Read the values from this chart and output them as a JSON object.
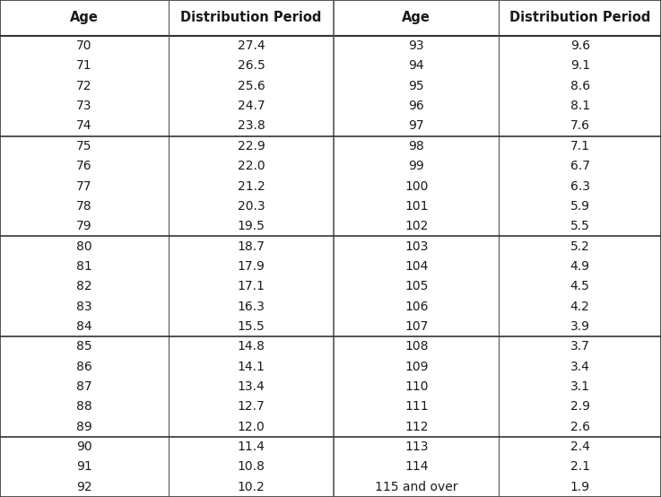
{
  "headers": [
    "Age",
    "Distribution Period",
    "Age",
    "Distribution Period"
  ],
  "groups": [
    {
      "left": [
        [
          "70",
          "27.4"
        ],
        [
          "71",
          "26.5"
        ],
        [
          "72",
          "25.6"
        ],
        [
          "73",
          "24.7"
        ],
        [
          "74",
          "23.8"
        ]
      ],
      "right": [
        [
          "93",
          "9.6"
        ],
        [
          "94",
          "9.1"
        ],
        [
          "95",
          "8.6"
        ],
        [
          "96",
          "8.1"
        ],
        [
          "97",
          "7.6"
        ]
      ]
    },
    {
      "left": [
        [
          "75",
          "22.9"
        ],
        [
          "76",
          "22.0"
        ],
        [
          "77",
          "21.2"
        ],
        [
          "78",
          "20.3"
        ],
        [
          "79",
          "19.5"
        ]
      ],
      "right": [
        [
          "98",
          "7.1"
        ],
        [
          "99",
          "6.7"
        ],
        [
          "100",
          "6.3"
        ],
        [
          "101",
          "5.9"
        ],
        [
          "102",
          "5.5"
        ]
      ]
    },
    {
      "left": [
        [
          "80",
          "18.7"
        ],
        [
          "81",
          "17.9"
        ],
        [
          "82",
          "17.1"
        ],
        [
          "83",
          "16.3"
        ],
        [
          "84",
          "15.5"
        ]
      ],
      "right": [
        [
          "103",
          "5.2"
        ],
        [
          "104",
          "4.9"
        ],
        [
          "105",
          "4.5"
        ],
        [
          "106",
          "4.2"
        ],
        [
          "107",
          "3.9"
        ]
      ]
    },
    {
      "left": [
        [
          "85",
          "14.8"
        ],
        [
          "86",
          "14.1"
        ],
        [
          "87",
          "13.4"
        ],
        [
          "88",
          "12.7"
        ],
        [
          "89",
          "12.0"
        ]
      ],
      "right": [
        [
          "108",
          "3.7"
        ],
        [
          "109",
          "3.4"
        ],
        [
          "110",
          "3.1"
        ],
        [
          "111",
          "2.9"
        ],
        [
          "112",
          "2.6"
        ]
      ]
    },
    {
      "left": [
        [
          "90",
          "11.4"
        ],
        [
          "91",
          "10.8"
        ],
        [
          "92",
          "10.2"
        ]
      ],
      "right": [
        [
          "113",
          "2.4"
        ],
        [
          "114",
          "2.1"
        ],
        [
          "115 and over",
          "1.9"
        ]
      ]
    }
  ],
  "header_fontsize": 10.5,
  "cell_fontsize": 10,
  "text_color": "#1a1a1a",
  "line_color": "#555555",
  "header_line_color": "#333333",
  "bg_color": "#ffffff",
  "figwidth": 7.37,
  "figheight": 5.54,
  "dpi": 100
}
